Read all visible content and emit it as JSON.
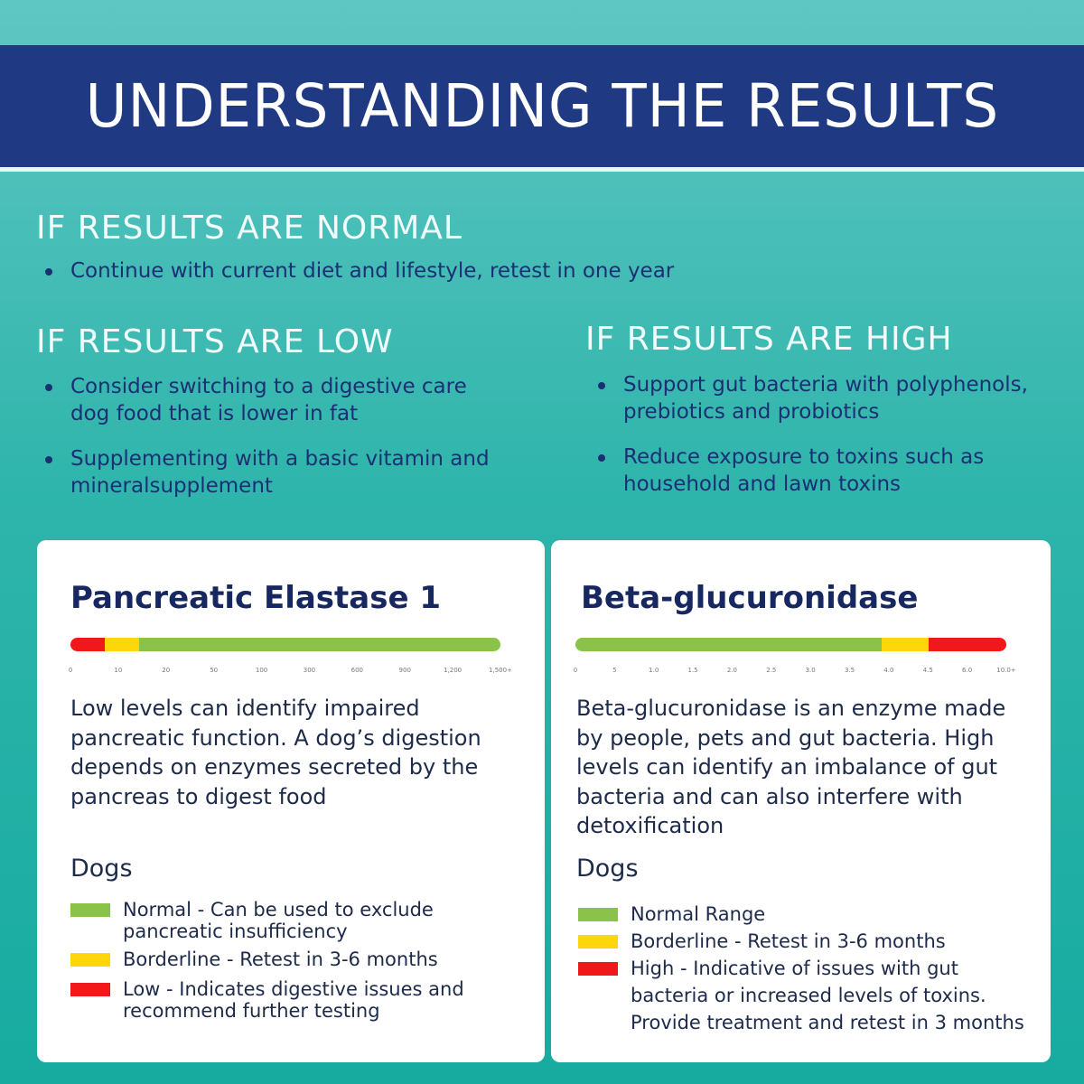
{
  "header": {
    "title": "UNDERSTANDING THE RESULTS"
  },
  "colors": {
    "banner": "#1f3a82",
    "normal": "#8bc34a",
    "borderline": "#ffd60a",
    "high": "#f01818",
    "text_dark": "#1b2f74"
  },
  "normal": {
    "title": "IF RESULTS ARE NORMAL",
    "bullets": [
      "Continue with current diet and lifestyle, retest in one year"
    ]
  },
  "low": {
    "title": "IF RESULTS ARE LOW",
    "bullets": [
      "Consider switching to a digestive care dog food that is lower in fat",
      "Supplementing with a basic vitamin and mineralsupplement"
    ]
  },
  "high": {
    "title": "IF RESULTS ARE HIGH",
    "bullets": [
      "Support gut bacteria with polyphenols, prebiotics and probiotics",
      "Reduce exposure to toxins such as household and lawn toxins"
    ]
  },
  "elastase": {
    "title": "Pancreatic Elastase 1",
    "ticks": [
      "0",
      "10",
      "20",
      "50",
      "100",
      "300",
      "600",
      "900",
      "1,200",
      "1,500+"
    ],
    "segments": [
      {
        "level": "low",
        "fraction": 0.08
      },
      {
        "level": "borderline",
        "fraction": 0.08
      },
      {
        "level": "normal",
        "fraction": 0.84
      }
    ],
    "description": "Low levels can identify impaired pancreatic function. A dog’s digestion depends on enzymes secreted by the pancreas to digest food",
    "dogs_label": "Dogs",
    "legend": [
      {
        "level": "normal",
        "text": "Normal -  Can be used to exclude pancreatic insufficiency"
      },
      {
        "level": "borderline",
        "text": "Borderline - Retest in 3-6 months"
      },
      {
        "level": "low",
        "text": "Low - Indicates digestive issues and recommend further testing"
      }
    ]
  },
  "glucuronidase": {
    "title": "Beta-glucuronidase",
    "ticks": [
      "0",
      "5",
      "1.0",
      "1.5",
      "2.0",
      "2.5",
      "3.0",
      "3.5",
      "4.0",
      "4.5",
      "6.0",
      "10.0+"
    ],
    "segments": [
      {
        "level": "normal",
        "fraction": 0.71
      },
      {
        "level": "borderline",
        "fraction": 0.11
      },
      {
        "level": "high",
        "fraction": 0.18
      }
    ],
    "description": "Beta-glucuronidase is an enzyme made by people, pets and gut bacteria. High levels can identify an imbalance of gut bacteria and can also interfere with detoxification",
    "dogs_label": "Dogs",
    "legend": [
      {
        "level": "normal",
        "text": "Normal Range"
      },
      {
        "level": "borderline",
        "text": "Borderline - Retest in 3-6 months"
      },
      {
        "level": "high",
        "text": "High - Indicative of issues with gut bacteria or increased levels of toxins. Provide treatment and retest in 3 months"
      }
    ]
  }
}
